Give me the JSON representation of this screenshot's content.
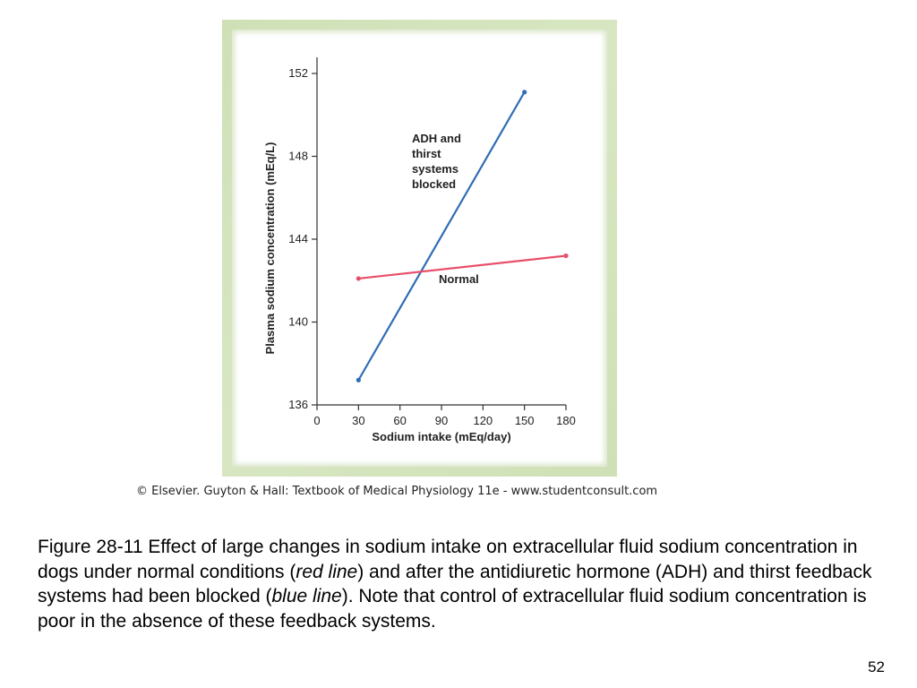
{
  "chart_data": {
    "type": "line",
    "xlabel": "Sodium intake (mEq/day)",
    "ylabel": "Plasma sodium concentration (mEq/L)",
    "xlim": [
      0,
      180
    ],
    "ylim": [
      136,
      152
    ],
    "xticks": [
      0,
      30,
      60,
      90,
      120,
      150,
      180
    ],
    "yticks": [
      136,
      140,
      144,
      148,
      152
    ],
    "grid": false,
    "series": [
      {
        "name": "ADH and thirst systems blocked",
        "label_lines": [
          "ADH and",
          "thirst",
          "systems",
          "blocked"
        ],
        "color": "#2e6db4",
        "x": [
          30,
          150
        ],
        "y": [
          137.2,
          151.1
        ]
      },
      {
        "name": "Normal",
        "label_lines": [
          "Normal"
        ],
        "color": "#e8506a",
        "x": [
          30,
          180
        ],
        "y": [
          142.1,
          143.2
        ]
      }
    ]
  },
  "copyright": "© Elsevier. Guyton & Hall: Textbook of Medical Physiology 11e - www.studentconsult.com",
  "caption": {
    "before_red": "Figure 28-11 Effect of large changes in sodium intake on extracellular fluid sodium concentration in dogs under normal conditions (",
    "red_term": "red line",
    "middle": ") and after the antidiuretic hormone (ADH) and thirst feedback systems had been blocked (",
    "blue_term": "blue line",
    "after_blue": "). Note that control of extracellular fluid sodium concentration is poor in the absence of these feedback systems."
  },
  "page_number": "52"
}
